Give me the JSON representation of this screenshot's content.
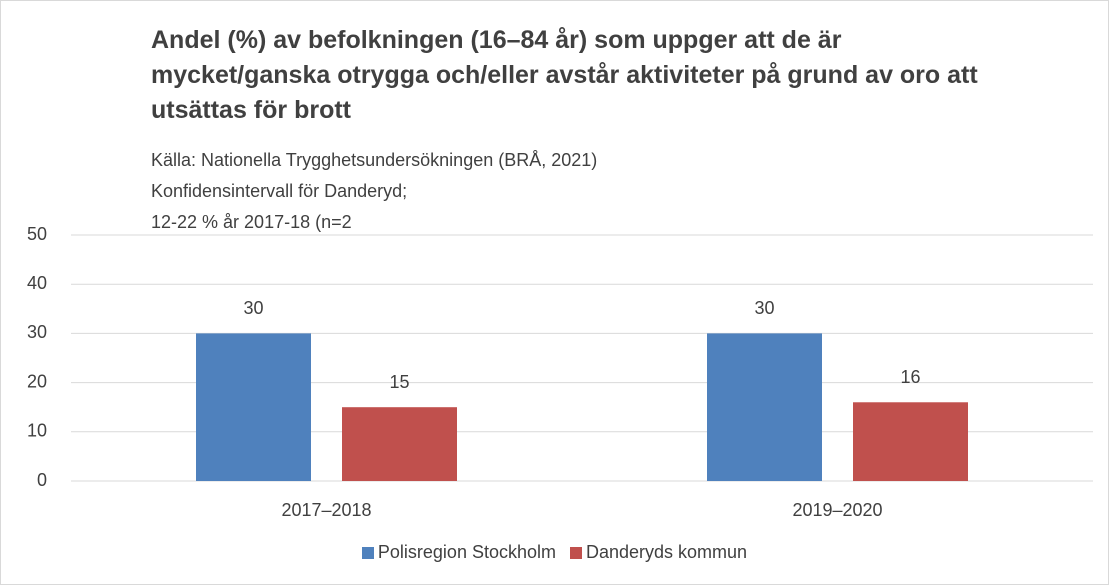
{
  "chart_data": {
    "type": "bar",
    "title": "Andel (%) av befolkningen (16–84 år) som uppger att de är mycket/ganska otrygga och/eller avstår aktiviteter på grund av oro att utsättas för brott",
    "subtitle": [
      "Källa: Nationella Trygghetsundersökningen (BRÅ, 2021)",
      "Konfidensintervall för Danderyd;",
      "12-22 % år 2017-18 (n=2"
    ],
    "categories": [
      "2017–2018",
      "2019–2020"
    ],
    "series": [
      {
        "name": "Polisregion Stockholm",
        "color": "#4f81bd",
        "values": [
          30,
          30
        ]
      },
      {
        "name": "Danderyds kommun",
        "color": "#c0504d",
        "values": [
          15,
          16
        ]
      }
    ],
    "ylim": [
      0,
      50
    ],
    "yticks": [
      0,
      10,
      20,
      30,
      40,
      50
    ],
    "grid": true,
    "legend": "bottom"
  }
}
